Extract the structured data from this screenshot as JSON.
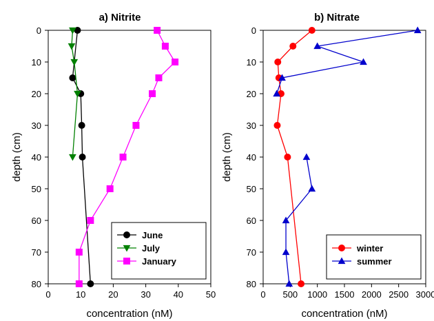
{
  "chart_data": [
    {
      "type": "line",
      "title": "a) Nitrite",
      "xlabel": "concentration (nM)",
      "ylabel": "depth (cm)",
      "xlim": [
        0,
        50
      ],
      "ylim": [
        80,
        0
      ],
      "xticks": [
        "0",
        "10",
        "20",
        "30",
        "40",
        "50"
      ],
      "yticks": [
        "0",
        "10",
        "20",
        "30",
        "40",
        "50",
        "60",
        "70",
        "80"
      ],
      "grid": false,
      "legend_position": "bottom-right",
      "series": [
        {
          "name": "June",
          "color": "#000000",
          "marker": "circle",
          "connected": true,
          "points": [
            [
              9,
              0
            ],
            [
              7.5,
              15
            ],
            [
              10,
              20
            ],
            [
              10.3,
              30
            ],
            [
              10.5,
              40
            ],
            [
              13,
              80
            ]
          ]
        },
        {
          "name": "July",
          "color": "#008000",
          "marker": "triangle-down",
          "connected": true,
          "points": [
            [
              7.5,
              0
            ],
            [
              7.2,
              5
            ],
            [
              8,
              10
            ],
            [
              9,
              20
            ],
            [
              7.5,
              40
            ]
          ]
        },
        {
          "name": "January",
          "color": "#ff00ff",
          "marker": "square",
          "connected": true,
          "points": [
            [
              33.5,
              0
            ],
            [
              36,
              5
            ],
            [
              39,
              10
            ],
            [
              34,
              15
            ],
            [
              32,
              20
            ],
            [
              27,
              30
            ],
            [
              23,
              40
            ],
            [
              19,
              50
            ],
            [
              13,
              60
            ],
            [
              9.5,
              70
            ],
            [
              9.5,
              80
            ]
          ]
        }
      ]
    },
    {
      "type": "line",
      "title": "b) Nitrate",
      "xlabel": "concentration (nM)",
      "ylabel": "depth (cm)",
      "xlim": [
        0,
        3000
      ],
      "ylim": [
        80,
        0
      ],
      "xticks": [
        "0",
        "500",
        "1000",
        "1500",
        "2000",
        "2500",
        "3000"
      ],
      "yticks": [
        "0",
        "10",
        "20",
        "30",
        "40",
        "50",
        "60",
        "70",
        "80"
      ],
      "grid": false,
      "legend_position": "bottom-right",
      "series": [
        {
          "name": "winter",
          "color": "#ff0000",
          "marker": "circle",
          "connected": true,
          "points": [
            [
              900,
              0
            ],
            [
              550,
              5
            ],
            [
              270,
              10
            ],
            [
              290,
              15
            ],
            [
              330,
              20
            ],
            [
              260,
              30
            ],
            [
              450,
              40
            ],
            [
              700,
              80
            ]
          ]
        },
        {
          "name": "summer",
          "color": "#0000cc",
          "marker": "triangle-up",
          "segments": [
            [
              [
                2850,
                0
              ],
              [
                1000,
                5
              ],
              [
                1850,
                10
              ],
              [
                350,
                15
              ],
              [
                250,
                20
              ]
            ],
            [
              [
                800,
                40
              ],
              [
                900,
                50
              ],
              [
                420,
                60
              ],
              [
                420,
                70
              ],
              [
                480,
                80
              ]
            ]
          ]
        }
      ]
    }
  ]
}
